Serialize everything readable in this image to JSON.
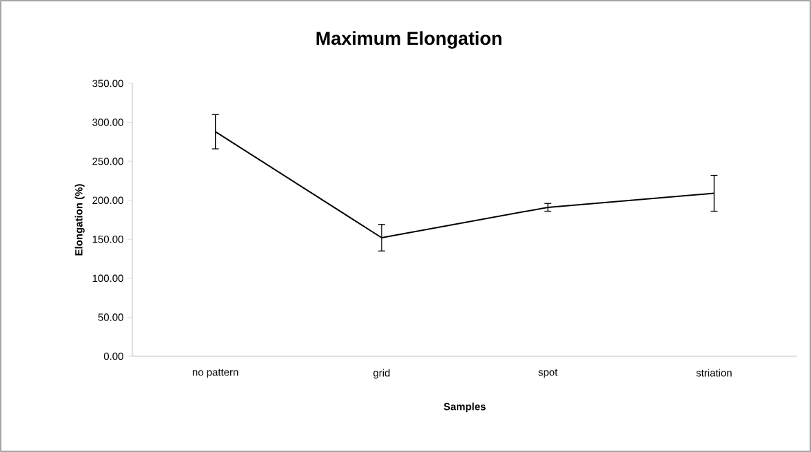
{
  "chart_data": {
    "type": "line",
    "title": "Maximum Elongation",
    "xlabel": "Samples",
    "ylabel": "Elongation (%)",
    "categories": [
      "no pattern",
      "grid",
      "spot",
      "striation"
    ],
    "series": [
      {
        "color": "#000000",
        "values": [
          288,
          152,
          191,
          209
        ],
        "errors": [
          22,
          17,
          5,
          23
        ]
      }
    ],
    "ylim": [
      0,
      350
    ],
    "yticks": [
      {
        "value": 0,
        "label": "0.00"
      },
      {
        "value": 50,
        "label": "50.00"
      },
      {
        "value": 100,
        "label": "100.00"
      },
      {
        "value": 150,
        "label": "150.00"
      },
      {
        "value": 200,
        "label": "200.00"
      },
      {
        "value": 250,
        "label": "250.00"
      },
      {
        "value": 300,
        "label": "300.00"
      },
      {
        "value": 350,
        "label": "350.00"
      }
    ],
    "grid": false,
    "marker": "none",
    "line_style": "solid"
  }
}
